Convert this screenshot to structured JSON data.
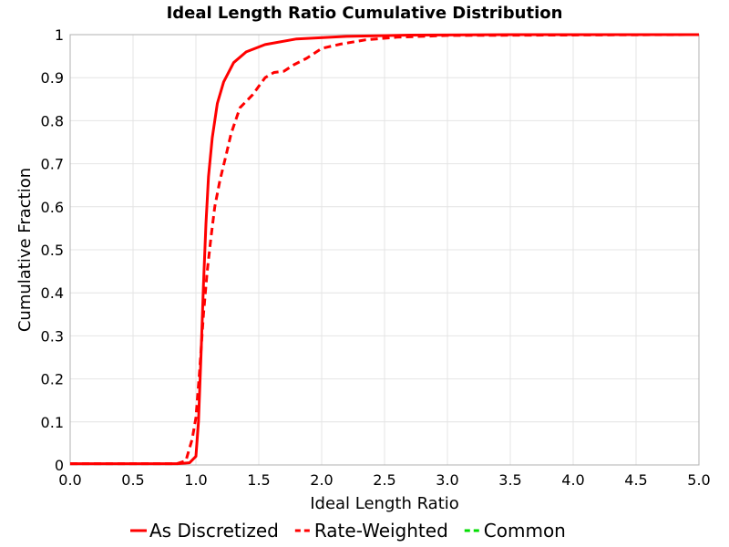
{
  "chart_data": {
    "type": "line",
    "title": "Ideal Length Ratio Cumulative Distribution",
    "xlabel": "Ideal Length Ratio",
    "ylabel": "Cumulative Fraction",
    "xlim": [
      0,
      5
    ],
    "ylim": [
      0,
      1
    ],
    "x_ticks": [
      "0.0",
      "0.5",
      "1.0",
      "1.5",
      "2.0",
      "2.5",
      "3.0",
      "3.5",
      "4.0",
      "4.5",
      "5.0"
    ],
    "y_ticks": [
      "0",
      "0.1",
      "0.2",
      "0.3",
      "0.4",
      "0.5",
      "0.6",
      "0.7",
      "0.8",
      "0.9",
      "1"
    ],
    "grid": true,
    "legend_position": "bottom",
    "series": [
      {
        "name": "As Discretized",
        "color": "#ff0000",
        "dash": "solid",
        "points": [
          [
            0,
            0.003
          ],
          [
            0.85,
            0.003
          ],
          [
            0.95,
            0.005
          ],
          [
            1.0,
            0.02
          ],
          [
            1.02,
            0.1
          ],
          [
            1.04,
            0.25
          ],
          [
            1.06,
            0.42
          ],
          [
            1.08,
            0.56
          ],
          [
            1.1,
            0.67
          ],
          [
            1.13,
            0.76
          ],
          [
            1.17,
            0.84
          ],
          [
            1.22,
            0.89
          ],
          [
            1.3,
            0.935
          ],
          [
            1.4,
            0.96
          ],
          [
            1.55,
            0.977
          ],
          [
            1.8,
            0.99
          ],
          [
            2.2,
            0.996
          ],
          [
            2.7,
            0.999
          ],
          [
            3.5,
            1.0
          ],
          [
            5.0,
            1.0
          ]
        ]
      },
      {
        "name": "Rate-Weighted",
        "color": "#ff0000",
        "dash": "dashed",
        "points": [
          [
            0,
            0.003
          ],
          [
            0.85,
            0.003
          ],
          [
            0.92,
            0.01
          ],
          [
            0.97,
            0.06
          ],
          [
            1.0,
            0.11
          ],
          [
            1.03,
            0.22
          ],
          [
            1.06,
            0.35
          ],
          [
            1.09,
            0.45
          ],
          [
            1.12,
            0.53
          ],
          [
            1.15,
            0.6
          ],
          [
            1.19,
            0.66
          ],
          [
            1.24,
            0.72
          ],
          [
            1.28,
            0.77
          ],
          [
            1.35,
            0.83
          ],
          [
            1.45,
            0.86
          ],
          [
            1.55,
            0.9
          ],
          [
            1.62,
            0.912
          ],
          [
            1.7,
            0.915
          ],
          [
            1.78,
            0.93
          ],
          [
            1.88,
            0.945
          ],
          [
            2.0,
            0.968
          ],
          [
            2.15,
            0.978
          ],
          [
            2.35,
            0.988
          ],
          [
            2.6,
            0.994
          ],
          [
            3.0,
            0.998
          ],
          [
            5.0,
            1.0
          ]
        ]
      },
      {
        "name": "Common",
        "color": "#00dd00",
        "dash": "dashed",
        "points": []
      }
    ]
  }
}
